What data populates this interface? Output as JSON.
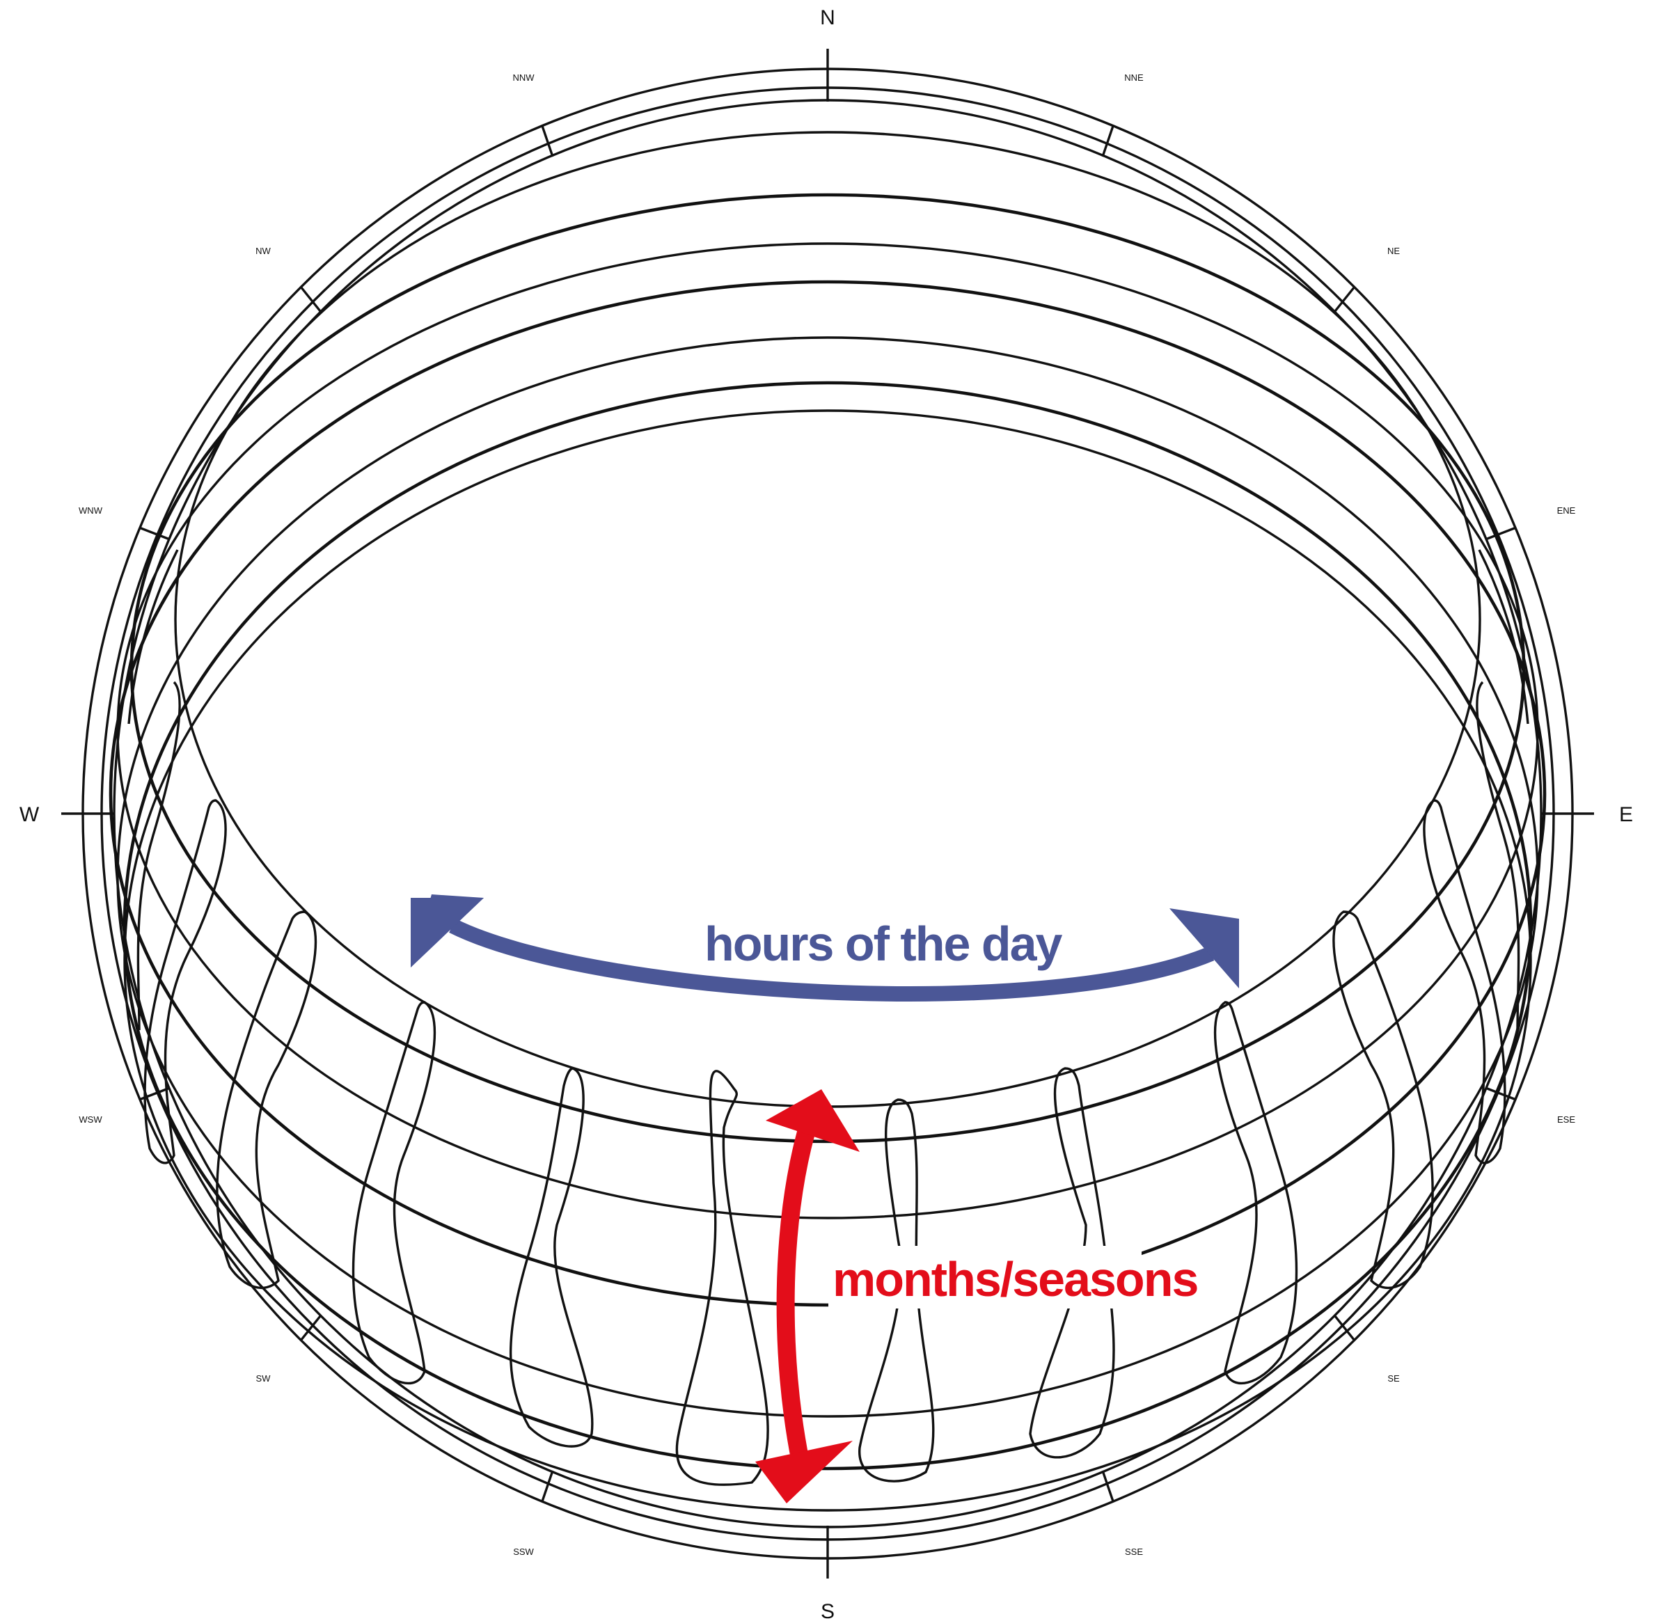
{
  "compass": {
    "N": "N",
    "S": "S",
    "E": "E",
    "W": "W",
    "NNE": "NNE",
    "NE": "NE",
    "ENE": "ENE",
    "ESE": "ESE",
    "SE": "SE",
    "SSE": "SSE",
    "SSW": "SSW",
    "SW": "SW",
    "WSW": "WSW",
    "WNW": "WNW",
    "NW": "NW",
    "NNW": "NNW"
  },
  "labels": {
    "hours": "hours of the day",
    "months": "months/seasons"
  },
  "colors": {
    "hours_arrow": "#4b5797",
    "months_arrow": "#e30d1a"
  }
}
